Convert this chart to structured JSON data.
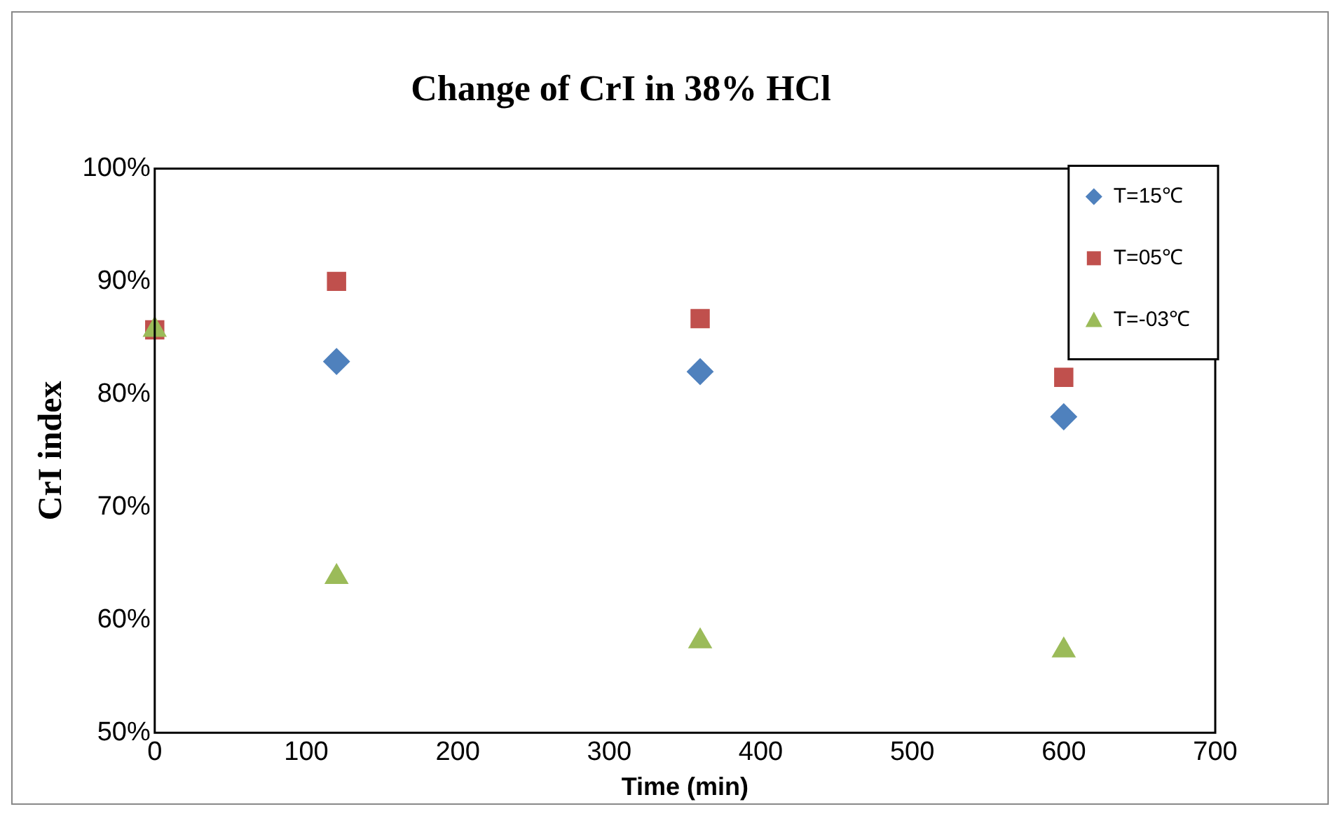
{
  "chart_data": {
    "type": "scatter",
    "title": "Change of CrI in 38% HCl",
    "xlabel": "Time (min)",
    "ylabel": "CrI index",
    "x": [
      0,
      120,
      360,
      600
    ],
    "series": [
      {
        "name": "T=15℃",
        "color": "#4f81bd",
        "marker": "diamond",
        "values": [
          null,
          82.9,
          82.0,
          78.0
        ]
      },
      {
        "name": "T=05℃",
        "color": "#c0504d",
        "marker": "square",
        "values": [
          85.7,
          90.0,
          86.7,
          81.5
        ]
      },
      {
        "name": "T=-03℃",
        "color": "#9bbb59",
        "marker": "triangle",
        "values": [
          85.7,
          63.8,
          58.1,
          57.3
        ]
      }
    ],
    "xlim": [
      0,
      700
    ],
    "xticks": [
      0,
      100,
      200,
      300,
      400,
      500,
      600,
      700
    ],
    "ylim": [
      50,
      100
    ],
    "yticks": [
      {
        "value": 50,
        "label": "50%"
      },
      {
        "value": 60,
        "label": "60%"
      },
      {
        "value": 70,
        "label": "70%"
      },
      {
        "value": 80,
        "label": "80%"
      },
      {
        "value": 90,
        "label": "90%"
      },
      {
        "value": 100,
        "label": "100%"
      }
    ],
    "grid": false,
    "legend": "top right"
  }
}
